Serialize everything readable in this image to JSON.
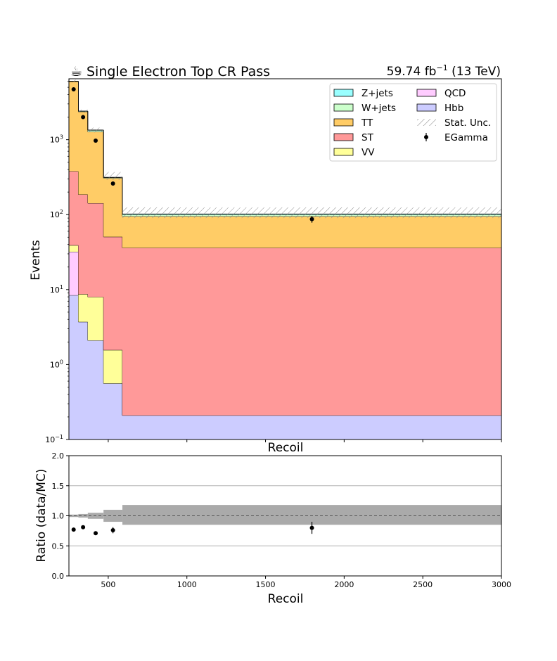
{
  "header": {
    "icon": "coffee-cup-icon",
    "title": "Single Electron Top CR Pass",
    "lumi_value": "59.74 fb",
    "lumi_sup": "−1",
    "lumi_energy": "(13 TeV)"
  },
  "chart_data": [
    {
      "type": "stacked-step-histogram",
      "ylabel": "Events",
      "xlabel": "Recoil",
      "yscale": "log",
      "ylim": [
        0.1,
        6500
      ],
      "xlim": [
        250,
        3000
      ],
      "ytick_labels": [
        {
          "base": "10",
          "exp": "−1",
          "value": 0.1
        },
        {
          "base": "10",
          "exp": "0",
          "value": 1
        },
        {
          "base": "10",
          "exp": "1",
          "value": 10
        },
        {
          "base": "10",
          "exp": "2",
          "value": 100
        },
        {
          "base": "10",
          "exp": "3",
          "value": 1000
        }
      ],
      "bin_edges": [
        250,
        310,
        370,
        470,
        590,
        3000
      ],
      "series": [
        {
          "name": "Hbb",
          "color": "#ccccff",
          "values": [
            8.4,
            3.7,
            2.1,
            0.56,
            0.21
          ]
        },
        {
          "name": "QCD",
          "color": "#ffccff",
          "values": [
            23.6,
            0.0,
            0.0,
            0.0,
            0.0
          ]
        },
        {
          "name": "VV",
          "color": "#ffff99",
          "values": [
            7.0,
            5.0,
            5.9,
            1.0,
            0.0
          ]
        },
        {
          "name": "ST",
          "color": "#ff9999",
          "values": [
            340,
            177,
            134,
            49,
            35.8
          ]
        },
        {
          "name": "TT",
          "color": "#ffcc66",
          "values": [
            5580,
            2180,
            1130,
            256,
            59
          ]
        },
        {
          "name": "W+jets",
          "color": "#ccffcc",
          "values": [
            70,
            35,
            60,
            6,
            5
          ]
        },
        {
          "name": "Z+jets",
          "color": "#99ffff",
          "values": [
            15,
            8,
            15,
            2,
            2
          ]
        }
      ],
      "stat_unc": {
        "name": "Stat. Unc.",
        "up": [
          6300,
          2520,
          1450,
          370,
          125
        ],
        "down": [
          5900,
          2300,
          1250,
          290,
          90
        ]
      },
      "data": {
        "name": "EGamma",
        "color": "#000000",
        "x": [
          280,
          340,
          420,
          530,
          1795
        ],
        "y": [
          4700,
          2000,
          970,
          260,
          87
        ],
        "yerr": [
          70,
          45,
          31,
          16,
          9
        ]
      },
      "legend": {
        "placement": "top-right",
        "columns": 2
      }
    },
    {
      "type": "ratio",
      "ylabel": "Ratio (data/MC)",
      "xlabel": "Recoil",
      "ylim": [
        0.0,
        2.0
      ],
      "xlim": [
        250,
        3000
      ],
      "yticks": [
        "0.0",
        "0.5",
        "1.0",
        "1.5",
        "2.0"
      ],
      "xticks": [
        "500",
        "1000",
        "1500",
        "2000",
        "2500",
        "3000"
      ],
      "grid": true,
      "bin_edges": [
        250,
        310,
        370,
        470,
        590,
        3000
      ],
      "band_lo": [
        0.98,
        0.97,
        0.95,
        0.9,
        0.85
      ],
      "band_hi": [
        1.02,
        1.03,
        1.05,
        1.1,
        1.18
      ],
      "points": {
        "x": [
          280,
          340,
          420,
          530,
          1795
        ],
        "y": [
          0.77,
          0.81,
          0.71,
          0.76,
          0.8
        ],
        "yerr": [
          0.015,
          0.02,
          0.02,
          0.05,
          0.1
        ]
      }
    }
  ]
}
